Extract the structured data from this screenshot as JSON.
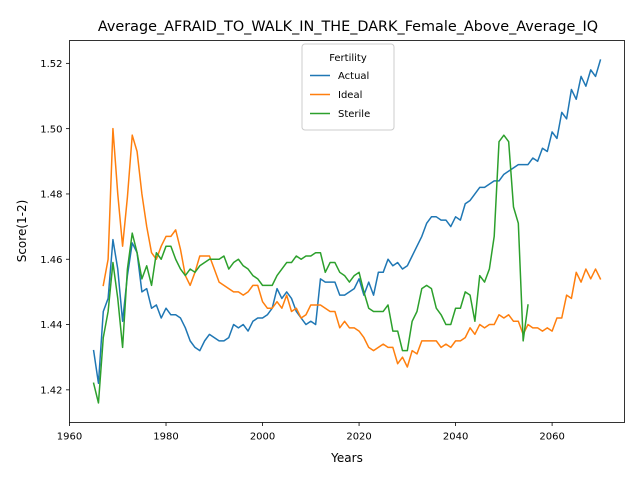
{
  "chart_data": {
    "type": "line",
    "title": "Average_AFRAID_TO_WALK_IN_THE_DARK_Female_Above_Average_IQ",
    "xlabel": "Years",
    "ylabel": "Score(1-2)",
    "xlim": [
      1960,
      2075
    ],
    "ylim": [
      1.41,
      1.527
    ],
    "xticks": [
      1960,
      1980,
      2000,
      2020,
      2040,
      2060
    ],
    "yticks": [
      1.42,
      1.44,
      1.46,
      1.48,
      1.5,
      1.52
    ],
    "ytick_labels": [
      "1.42",
      "1.44",
      "1.46",
      "1.48",
      "1.50",
      "1.52"
    ],
    "grid": false,
    "legend": {
      "title": "Fertility",
      "placement": "top-center"
    },
    "series": [
      {
        "name": "Actual",
        "color": "#1f77b4",
        "points": [
          [
            1965,
            1.432
          ],
          [
            1966,
            1.422
          ],
          [
            1967,
            1.444
          ],
          [
            1968,
            1.448
          ],
          [
            1969,
            1.466
          ],
          [
            1970,
            1.457
          ],
          [
            1971,
            1.441
          ],
          [
            1972,
            1.455
          ],
          [
            1973,
            1.465
          ],
          [
            1974,
            1.462
          ],
          [
            1975,
            1.45
          ],
          [
            1976,
            1.451
          ],
          [
            1977,
            1.445
          ],
          [
            1978,
            1.446
          ],
          [
            1979,
            1.442
          ],
          [
            1980,
            1.445
          ],
          [
            1981,
            1.443
          ],
          [
            1982,
            1.443
          ],
          [
            1983,
            1.442
          ],
          [
            1984,
            1.439
          ],
          [
            1985,
            1.435
          ],
          [
            1986,
            1.433
          ],
          [
            1987,
            1.432
          ],
          [
            1988,
            1.435
          ],
          [
            1989,
            1.437
          ],
          [
            1990,
            1.436
          ],
          [
            1991,
            1.435
          ],
          [
            1992,
            1.435
          ],
          [
            1993,
            1.436
          ],
          [
            1994,
            1.44
          ],
          [
            1995,
            1.439
          ],
          [
            1996,
            1.44
          ],
          [
            1997,
            1.438
          ],
          [
            1998,
            1.441
          ],
          [
            1999,
            1.442
          ],
          [
            2000,
            1.442
          ],
          [
            2001,
            1.443
          ],
          [
            2002,
            1.445
          ],
          [
            2003,
            1.451
          ],
          [
            2004,
            1.448
          ],
          [
            2005,
            1.45
          ],
          [
            2006,
            1.448
          ],
          [
            2007,
            1.444
          ],
          [
            2008,
            1.442
          ],
          [
            2009,
            1.44
          ],
          [
            2010,
            1.441
          ],
          [
            2011,
            1.44
          ],
          [
            2012,
            1.454
          ],
          [
            2013,
            1.453
          ],
          [
            2014,
            1.453
          ],
          [
            2015,
            1.453
          ],
          [
            2016,
            1.449
          ],
          [
            2017,
            1.449
          ],
          [
            2018,
            1.45
          ],
          [
            2019,
            1.451
          ],
          [
            2020,
            1.454
          ],
          [
            2021,
            1.449
          ],
          [
            2022,
            1.453
          ],
          [
            2023,
            1.449
          ],
          [
            2024,
            1.456
          ],
          [
            2025,
            1.456
          ],
          [
            2026,
            1.46
          ],
          [
            2027,
            1.458
          ],
          [
            2028,
            1.459
          ],
          [
            2029,
            1.457
          ],
          [
            2030,
            1.458
          ],
          [
            2031,
            1.461
          ],
          [
            2032,
            1.464
          ],
          [
            2033,
            1.467
          ],
          [
            2034,
            1.471
          ],
          [
            2035,
            1.473
          ],
          [
            2036,
            1.473
          ],
          [
            2037,
            1.472
          ],
          [
            2038,
            1.472
          ],
          [
            2039,
            1.47
          ],
          [
            2040,
            1.473
          ],
          [
            2041,
            1.472
          ],
          [
            2042,
            1.477
          ],
          [
            2043,
            1.478
          ],
          [
            2044,
            1.48
          ],
          [
            2045,
            1.482
          ],
          [
            2046,
            1.482
          ],
          [
            2047,
            1.483
          ],
          [
            2048,
            1.484
          ],
          [
            2049,
            1.484
          ],
          [
            2050,
            1.486
          ],
          [
            2051,
            1.487
          ],
          [
            2052,
            1.488
          ],
          [
            2053,
            1.489
          ],
          [
            2054,
            1.489
          ],
          [
            2055,
            1.489
          ],
          [
            2056,
            1.491
          ],
          [
            2057,
            1.49
          ],
          [
            2058,
            1.494
          ],
          [
            2059,
            1.493
          ],
          [
            2060,
            1.499
          ],
          [
            2061,
            1.497
          ],
          [
            2062,
            1.505
          ],
          [
            2063,
            1.503
          ],
          [
            2064,
            1.512
          ],
          [
            2065,
            1.509
          ],
          [
            2066,
            1.516
          ],
          [
            2067,
            1.513
          ],
          [
            2068,
            1.518
          ],
          [
            2069,
            1.516
          ],
          [
            2070,
            1.521
          ]
        ]
      },
      {
        "name": "Ideal",
        "color": "#ff7f0e",
        "points": [
          [
            1967,
            1.452
          ],
          [
            1968,
            1.46
          ],
          [
            1969,
            1.5
          ],
          [
            1970,
            1.48
          ],
          [
            1971,
            1.464
          ],
          [
            1972,
            1.479
          ],
          [
            1973,
            1.498
          ],
          [
            1974,
            1.493
          ],
          [
            1975,
            1.48
          ],
          [
            1976,
            1.47
          ],
          [
            1977,
            1.462
          ],
          [
            1978,
            1.46
          ],
          [
            1979,
            1.464
          ],
          [
            1980,
            1.467
          ],
          [
            1981,
            1.467
          ],
          [
            1982,
            1.469
          ],
          [
            1983,
            1.463
          ],
          [
            1984,
            1.455
          ],
          [
            1985,
            1.452
          ],
          [
            1986,
            1.456
          ],
          [
            1987,
            1.461
          ],
          [
            1988,
            1.461
          ],
          [
            1989,
            1.461
          ],
          [
            1990,
            1.457
          ],
          [
            1991,
            1.453
          ],
          [
            1992,
            1.452
          ],
          [
            1993,
            1.451
          ],
          [
            1994,
            1.45
          ],
          [
            1995,
            1.45
          ],
          [
            1996,
            1.449
          ],
          [
            1997,
            1.45
          ],
          [
            1998,
            1.452
          ],
          [
            1999,
            1.452
          ],
          [
            2000,
            1.447
          ],
          [
            2001,
            1.445
          ],
          [
            2002,
            1.445
          ],
          [
            2003,
            1.447
          ],
          [
            2004,
            1.445
          ],
          [
            2005,
            1.449
          ],
          [
            2006,
            1.444
          ],
          [
            2007,
            1.445
          ],
          [
            2008,
            1.442
          ],
          [
            2009,
            1.443
          ],
          [
            2010,
            1.446
          ],
          [
            2011,
            1.446
          ],
          [
            2012,
            1.446
          ],
          [
            2013,
            1.445
          ],
          [
            2014,
            1.444
          ],
          [
            2015,
            1.444
          ],
          [
            2016,
            1.439
          ],
          [
            2017,
            1.441
          ],
          [
            2018,
            1.439
          ],
          [
            2019,
            1.439
          ],
          [
            2020,
            1.438
          ],
          [
            2021,
            1.436
          ],
          [
            2022,
            1.433
          ],
          [
            2023,
            1.432
          ],
          [
            2024,
            1.433
          ],
          [
            2025,
            1.434
          ],
          [
            2026,
            1.433
          ],
          [
            2027,
            1.433
          ],
          [
            2028,
            1.428
          ],
          [
            2029,
            1.43
          ],
          [
            2030,
            1.427
          ],
          [
            2031,
            1.432
          ],
          [
            2032,
            1.431
          ],
          [
            2033,
            1.435
          ],
          [
            2034,
            1.435
          ],
          [
            2035,
            1.435
          ],
          [
            2036,
            1.435
          ],
          [
            2037,
            1.433
          ],
          [
            2038,
            1.434
          ],
          [
            2039,
            1.433
          ],
          [
            2040,
            1.435
          ],
          [
            2041,
            1.435
          ],
          [
            2042,
            1.436
          ],
          [
            2043,
            1.439
          ],
          [
            2044,
            1.437
          ],
          [
            2045,
            1.44
          ],
          [
            2046,
            1.439
          ],
          [
            2047,
            1.44
          ],
          [
            2048,
            1.44
          ],
          [
            2049,
            1.443
          ],
          [
            2050,
            1.442
          ],
          [
            2051,
            1.443
          ],
          [
            2052,
            1.441
          ],
          [
            2053,
            1.441
          ],
          [
            2054,
            1.437
          ],
          [
            2055,
            1.44
          ],
          [
            2056,
            1.439
          ],
          [
            2057,
            1.439
          ],
          [
            2058,
            1.438
          ],
          [
            2059,
            1.439
          ],
          [
            2060,
            1.438
          ],
          [
            2061,
            1.442
          ],
          [
            2062,
            1.442
          ],
          [
            2063,
            1.449
          ],
          [
            2064,
            1.448
          ],
          [
            2065,
            1.456
          ],
          [
            2066,
            1.453
          ],
          [
            2067,
            1.457
          ],
          [
            2068,
            1.454
          ],
          [
            2069,
            1.457
          ],
          [
            2070,
            1.454
          ]
        ]
      },
      {
        "name": "Sterile",
        "color": "#2ca02c",
        "points": [
          [
            1965,
            1.422
          ],
          [
            1966,
            1.416
          ],
          [
            1967,
            1.436
          ],
          [
            1968,
            1.444
          ],
          [
            1969,
            1.459
          ],
          [
            1970,
            1.448
          ],
          [
            1971,
            1.433
          ],
          [
            1972,
            1.457
          ],
          [
            1973,
            1.468
          ],
          [
            1974,
            1.462
          ],
          [
            1975,
            1.454
          ],
          [
            1976,
            1.458
          ],
          [
            1977,
            1.452
          ],
          [
            1978,
            1.462
          ],
          [
            1979,
            1.46
          ],
          [
            1980,
            1.464
          ],
          [
            1981,
            1.464
          ],
          [
            1982,
            1.46
          ],
          [
            1983,
            1.457
          ],
          [
            1984,
            1.455
          ],
          [
            1985,
            1.457
          ],
          [
            1986,
            1.456
          ],
          [
            1987,
            1.458
          ],
          [
            1988,
            1.459
          ],
          [
            1989,
            1.46
          ],
          [
            1990,
            1.46
          ],
          [
            1991,
            1.46
          ],
          [
            1992,
            1.461
          ],
          [
            1993,
            1.457
          ],
          [
            1994,
            1.459
          ],
          [
            1995,
            1.46
          ],
          [
            1996,
            1.458
          ],
          [
            1997,
            1.457
          ],
          [
            1998,
            1.455
          ],
          [
            1999,
            1.454
          ],
          [
            2000,
            1.452
          ],
          [
            2001,
            1.452
          ],
          [
            2002,
            1.452
          ],
          [
            2003,
            1.455
          ],
          [
            2004,
            1.457
          ],
          [
            2005,
            1.459
          ],
          [
            2006,
            1.459
          ],
          [
            2007,
            1.461
          ],
          [
            2008,
            1.46
          ],
          [
            2009,
            1.461
          ],
          [
            2010,
            1.461
          ],
          [
            2011,
            1.462
          ],
          [
            2012,
            1.462
          ],
          [
            2013,
            1.456
          ],
          [
            2014,
            1.459
          ],
          [
            2015,
            1.459
          ],
          [
            2016,
            1.456
          ],
          [
            2017,
            1.455
          ],
          [
            2018,
            1.453
          ],
          [
            2019,
            1.455
          ],
          [
            2020,
            1.456
          ],
          [
            2021,
            1.45
          ],
          [
            2022,
            1.445
          ],
          [
            2023,
            1.444
          ],
          [
            2024,
            1.444
          ],
          [
            2025,
            1.444
          ],
          [
            2026,
            1.446
          ],
          [
            2027,
            1.438
          ],
          [
            2028,
            1.438
          ],
          [
            2029,
            1.432
          ],
          [
            2030,
            1.432
          ],
          [
            2031,
            1.441
          ],
          [
            2032,
            1.444
          ],
          [
            2033,
            1.451
          ],
          [
            2034,
            1.452
          ],
          [
            2035,
            1.451
          ],
          [
            2036,
            1.445
          ],
          [
            2037,
            1.443
          ],
          [
            2038,
            1.44
          ],
          [
            2039,
            1.44
          ],
          [
            2040,
            1.445
          ],
          [
            2041,
            1.445
          ],
          [
            2042,
            1.45
          ],
          [
            2043,
            1.449
          ],
          [
            2044,
            1.441
          ],
          [
            2045,
            1.455
          ],
          [
            2046,
            1.453
          ],
          [
            2047,
            1.457
          ],
          [
            2048,
            1.467
          ],
          [
            2049,
            1.496
          ],
          [
            2050,
            1.498
          ],
          [
            2051,
            1.496
          ],
          [
            2052,
            1.476
          ],
          [
            2053,
            1.471
          ],
          [
            2054,
            1.435
          ],
          [
            2055,
            1.446
          ]
        ]
      }
    ]
  }
}
